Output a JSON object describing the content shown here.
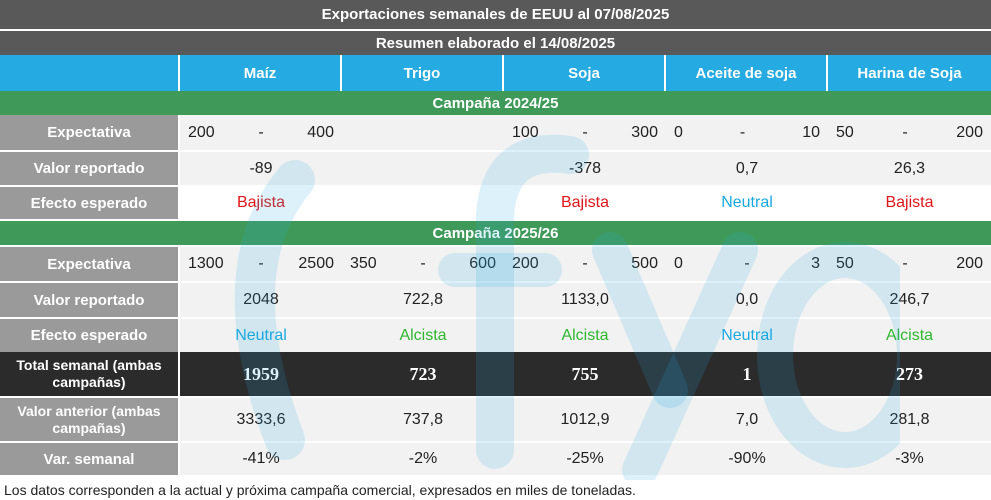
{
  "title": "Exportaciones semanales de EEUU al 07/08/2025",
  "subtitle": "Resumen elaborado el 14/08/2025",
  "columns": [
    "Maíz",
    "Trigo",
    "Soja",
    "Aceite de soja",
    "Harina de Soja"
  ],
  "campaign1": {
    "name": "Campaña 2024/25",
    "labels": {
      "expectativa": "Expectativa",
      "valor": "Valor reportado",
      "efecto": "Efecto esperado"
    },
    "expectativa": [
      {
        "low": "200",
        "sep": "-",
        "high": "400"
      },
      {
        "low": "",
        "sep": "",
        "high": ""
      },
      {
        "low": "100",
        "sep": "-",
        "high": "300"
      },
      {
        "low": "0",
        "sep": "-",
        "high": "10"
      },
      {
        "low": "50",
        "sep": "-",
        "high": "200"
      }
    ],
    "valor": [
      "-89",
      "",
      "-378",
      "0,7",
      "26,3"
    ],
    "efecto": [
      "Bajista",
      "",
      "Bajista",
      "Neutral",
      "Bajista"
    ]
  },
  "campaign2": {
    "name": "Campaña 2025/26",
    "labels": {
      "expectativa": "Expectativa",
      "valor": "Valor reportado",
      "efecto": "Efecto esperado"
    },
    "expectativa": [
      {
        "low": "1300",
        "sep": "-",
        "high": "2500"
      },
      {
        "low": "350",
        "sep": "-",
        "high": "600"
      },
      {
        "low": "200",
        "sep": "-",
        "high": "500"
      },
      {
        "low": "0",
        "sep": "-",
        "high": "3"
      },
      {
        "low": "50",
        "sep": "-",
        "high": "200"
      }
    ],
    "valor": [
      "2048",
      "722,8",
      "1133,0",
      "0,0",
      "246,7"
    ],
    "efecto": [
      "Neutral",
      "Alcista",
      "Alcista",
      "Neutral",
      "Alcista"
    ]
  },
  "total": {
    "label_line1": "Total semanal (ambas",
    "label_line2": "campañas)",
    "values": [
      "1959",
      "723",
      "755",
      "1",
      "273"
    ]
  },
  "anterior": {
    "label_line1": "Valor anterior (ambas",
    "label_line2": "campañas)",
    "values": [
      "3333,6",
      "737,8",
      "1012,9",
      "7,0",
      "281,8"
    ]
  },
  "variacion": {
    "label": "Var. semanal",
    "values": [
      "-41%",
      "-2%",
      "-25%",
      "-90%",
      "-3%"
    ]
  },
  "effect_colors": {
    "Bajista": "#e0161b",
    "Neutral": "#19a9e2",
    "Alcista": "#2eb82e"
  },
  "note": "Los datos corresponden a la actual y próxima campaña comercial, expresados en miles de toneladas.",
  "watermark": {
    "text": "(fyo",
    "color": "#25aae2"
  }
}
